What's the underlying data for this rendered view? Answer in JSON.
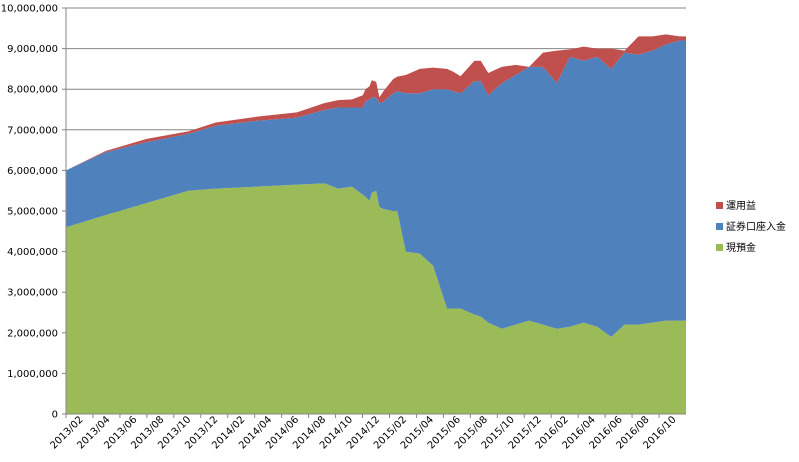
{
  "chart_data": {
    "type": "area",
    "stacked": true,
    "title": "",
    "xlabel": "",
    "ylabel": "",
    "ylim": [
      0,
      10000000
    ],
    "yticks": [
      0,
      1000000,
      2000000,
      3000000,
      4000000,
      5000000,
      6000000,
      7000000,
      8000000,
      9000000,
      10000000
    ],
    "ytick_labels": [
      "0",
      "1,000,000",
      "2,000,000",
      "3,000,000",
      "4,000,000",
      "5,000,000",
      "6,000,000",
      "7,000,000",
      "8,000,000",
      "9,000,000",
      "10,000,000"
    ],
    "xticks": [
      "2013/02",
      "2013/04",
      "2013/06",
      "2013/08",
      "2013/10",
      "2013/12",
      "2014/02",
      "2014/04",
      "2014/06",
      "2014/08",
      "2014/10",
      "2014/12",
      "2015/02",
      "2015/04",
      "2015/06",
      "2015/08",
      "2015/10",
      "2015/12",
      "2016/02",
      "2016/04",
      "2016/06",
      "2016/08",
      "2016/10"
    ],
    "xlim": [
      "2013-02-01",
      "2016-11-15"
    ],
    "grid": "horizontal",
    "legend": "right",
    "x": [
      "2013-02-01",
      "2013-05-01",
      "2013-08-01",
      "2013-11-01",
      "2014-01-01",
      "2014-04-01",
      "2014-07-01",
      "2014-09-01",
      "2014-10-01",
      "2014-11-01",
      "2014-11-25",
      "2014-12-01",
      "2014-12-10",
      "2014-12-15",
      "2014-12-25",
      "2015-01-01",
      "2015-01-10",
      "2015-02-01",
      "2015-02-10",
      "2015-03-01",
      "2015-04-01",
      "2015-05-01",
      "2015-06-01",
      "2015-06-15",
      "2015-07-01",
      "2015-08-01",
      "2015-08-15",
      "2015-09-01",
      "2015-10-01",
      "2015-11-01",
      "2015-12-01",
      "2016-01-01",
      "2016-02-01",
      "2016-03-01",
      "2016-04-01",
      "2016-05-01",
      "2016-06-01",
      "2016-07-01",
      "2016-08-01",
      "2016-09-01",
      "2016-10-01",
      "2016-11-01",
      "2016-11-15"
    ],
    "series": [
      {
        "name": "現預金",
        "color": "#9bbb59",
        "values": [
          4600000,
          4900000,
          5200000,
          5500000,
          5550000,
          5600000,
          5650000,
          5680000,
          5550000,
          5600000,
          5400000,
          5350000,
          5250000,
          5450000,
          5500000,
          5100000,
          5050000,
          5000000,
          5000000,
          4000000,
          3950000,
          3650000,
          2600000,
          2600000,
          2600000,
          2450000,
          2400000,
          2250000,
          2100000,
          2200000,
          2300000,
          2200000,
          2100000,
          2150000,
          2250000,
          2150000,
          1900000,
          2200000,
          2200000,
          2250000,
          2300000,
          2300000,
          2300000
        ]
      },
      {
        "name": "証券口座入金",
        "color": "#4f81bd",
        "values": [
          1400000,
          1550000,
          1500000,
          1400000,
          1550000,
          1620000,
          1650000,
          1810000,
          2000000,
          1950000,
          2150000,
          2350000,
          2500000,
          2350000,
          2300000,
          2550000,
          2650000,
          2900000,
          2950000,
          3900000,
          3950000,
          4350000,
          5400000,
          5350000,
          5300000,
          5750000,
          5800000,
          5600000,
          6050000,
          6150000,
          6250000,
          6350000,
          6050000,
          6650000,
          6450000,
          6650000,
          6600000,
          6700000,
          6650000,
          6700000,
          6800000,
          6900000,
          6900000
        ]
      },
      {
        "name": "運用益",
        "color": "#c0504d",
        "values": [
          0,
          30000,
          80000,
          60000,
          80000,
          100000,
          130000,
          170000,
          180000,
          200000,
          300000,
          300000,
          320000,
          420000,
          380000,
          150000,
          250000,
          350000,
          360000,
          450000,
          600000,
          530000,
          500000,
          480000,
          420000,
          500000,
          500000,
          550000,
          400000,
          250000,
          0,
          350000,
          800000,
          180000,
          350000,
          200000,
          500000,
          50000,
          450000,
          350000,
          250000,
          100000,
          100000
        ]
      }
    ]
  }
}
